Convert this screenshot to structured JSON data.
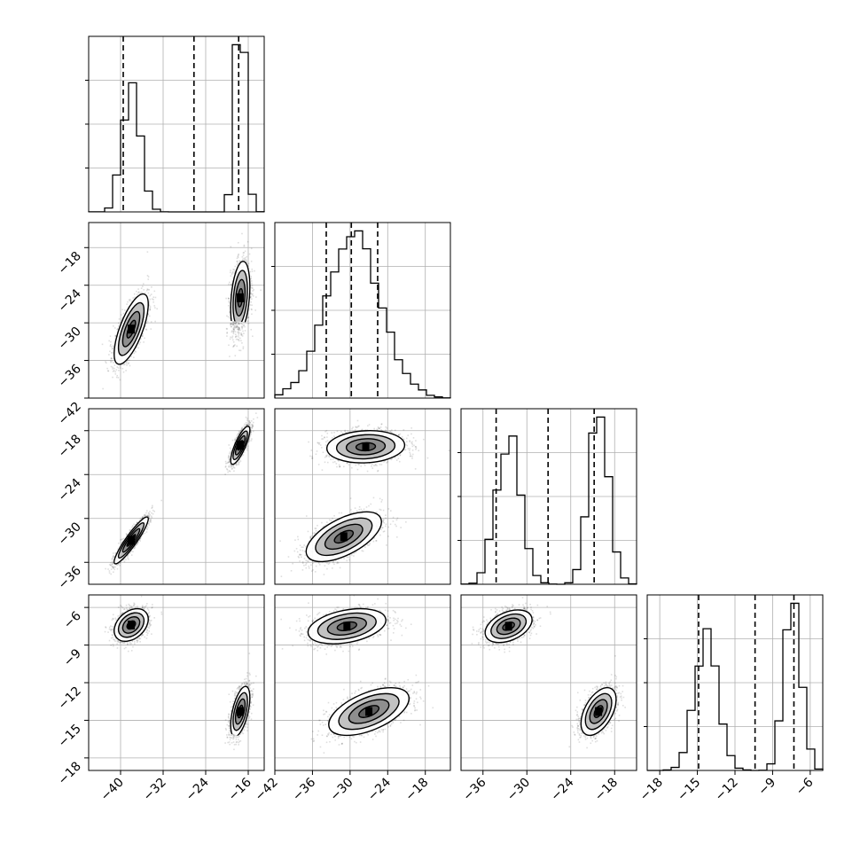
{
  "chart_data": {
    "type": "scatter",
    "kind": "corner-plot",
    "grid": true,
    "parameters": [
      {
        "range": [
          -46,
          -13
        ],
        "hist_scale": "normalized",
        "quantiles": [
          -39.5,
          -26.2,
          -17.8
        ],
        "ticks": [
          -40,
          -32,
          -24,
          -16
        ],
        "tick_labels": [
          "−40",
          "−32",
          "−24",
          "−16"
        ],
        "modes": [
          {
            "mu": -38,
            "sigma": 1.6,
            "weight": 0.5
          },
          {
            "mu": -17.5,
            "sigma": 0.9,
            "weight": 0.5
          }
        ]
      },
      {
        "range": [
          -42,
          -14
        ],
        "hist_scale": "normalized",
        "quantiles": [
          -33.8,
          -29.8,
          -25.6
        ],
        "ticks": [
          -42,
          -36,
          -30,
          -24,
          -18
        ],
        "tick_labels": [
          "−42",
          "−36",
          "−30",
          "−24",
          "−18"
        ],
        "modes": [
          {
            "mu": -29.5,
            "sigma": 4.3,
            "weight": 1.0
          }
        ]
      },
      {
        "range": [
          -39,
          -15
        ],
        "hist_scale": "normalized",
        "quantiles": [
          -34.2,
          -27.1,
          -20.8
        ],
        "ticks": [
          -36,
          -30,
          -24,
          -18
        ],
        "tick_labels": [
          "−36",
          "−30",
          "−24",
          "−18"
        ],
        "modes": [
          {
            "mu": -32.5,
            "sigma": 1.6,
            "weight": 0.5
          },
          {
            "mu": -20.2,
            "sigma": 1.3,
            "weight": 0.5
          }
        ]
      },
      {
        "range": [
          -19,
          -5
        ],
        "hist_scale": "normalized",
        "quantiles": [
          -14.9,
          -10.4,
          -7.3
        ],
        "ticks": [
          -18,
          -15,
          -12,
          -9,
          -6
        ],
        "tick_labels": [
          "−18",
          "−15",
          "−12",
          "−9",
          "−6"
        ],
        "modes": [
          {
            "mu": -14.3,
            "sigma": 0.9,
            "weight": 0.5
          },
          {
            "mu": -7.4,
            "sigma": 0.65,
            "weight": 0.5
          }
        ]
      }
    ],
    "joint_clusters": {
      "1-0": [
        {
          "mx": -38,
          "my": -31,
          "sx": 1.6,
          "sy": 2.8,
          "rho": 0.7
        },
        {
          "mx": -17.5,
          "my": -26,
          "sx": 0.9,
          "sy": 2.9,
          "rho": 0.3
        }
      ],
      "2-0": [
        {
          "mx": -38,
          "my": -33,
          "sx": 1.6,
          "sy": 1.6,
          "rho": 0.92
        },
        {
          "mx": -17.5,
          "my": -20,
          "sx": 0.9,
          "sy": 1.3,
          "rho": 0.8
        }
      ],
      "2-1": [
        {
          "mx": -31,
          "my": -32.5,
          "sx": 3.0,
          "sy": 1.7,
          "rho": 0.6
        },
        {
          "mx": -27.5,
          "my": -20.2,
          "sx": 3.1,
          "sy": 1.1,
          "rho": 0.1
        }
      ],
      "3-0": [
        {
          "mx": -38,
          "my": -7.4,
          "sx": 1.6,
          "sy": 0.65,
          "rho": 0.35
        },
        {
          "mx": -17.5,
          "my": -14.3,
          "sx": 0.9,
          "sy": 1.0,
          "rho": 0.55
        }
      ],
      "3-1": [
        {
          "mx": -30.5,
          "my": -7.5,
          "sx": 3.1,
          "sy": 0.7,
          "rho": 0.35
        },
        {
          "mx": -27,
          "my": -14.3,
          "sx": 3.2,
          "sy": 0.95,
          "rho": 0.55
        }
      ],
      "3-2": [
        {
          "mx": -32.5,
          "my": -7.5,
          "sx": 1.6,
          "sy": 0.65,
          "rho": 0.4
        },
        {
          "mx": -20.2,
          "my": -14.3,
          "sx": 1.2,
          "sy": 0.95,
          "rho": 0.5
        }
      ]
    },
    "contour_levels_sigma": [
      0.5,
      1.0,
      1.5,
      2.0
    ],
    "title": "",
    "xlabel": "",
    "ylabel": ""
  }
}
